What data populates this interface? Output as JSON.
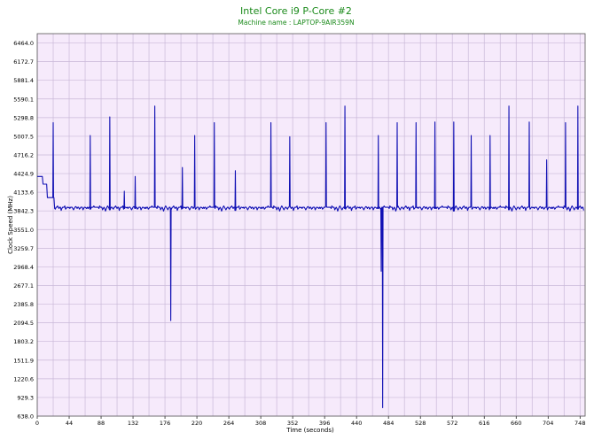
{
  "chart_data": {
    "type": "line",
    "title": "Intel Core i9 P-Core #2",
    "subtitle": "Machine name : LAPTOP-9AIR359N",
    "xlabel": "Time (seconds)",
    "ylabel": "Clock Speed (MHz)",
    "xlim": [
      0,
      755
    ],
    "ylim": [
      638.0,
      6610
    ],
    "x_ticks": [
      0,
      44,
      88,
      132,
      176,
      220,
      264,
      308,
      352,
      396,
      440,
      484,
      528,
      572,
      616,
      660,
      704,
      748
    ],
    "y_ticks": [
      "638.0",
      "929.3",
      "1220.6",
      "1511.9",
      "1803.2",
      "2094.5",
      "2385.8",
      "2677.1",
      "2968.4",
      "3259.7",
      "3551.0",
      "3842.3",
      "4133.6",
      "4424.9",
      "4716.2",
      "5007.5",
      "5298.8",
      "5590.1",
      "5881.4",
      "6172.7",
      "6464.0"
    ],
    "grid": true,
    "colors": {
      "line": "#1010b4",
      "plot_background": "#f6eafb",
      "grid": "#c9b8d8",
      "title": "#1b8a1b"
    },
    "base_samples": [
      3900,
      3900,
      3900,
      3900,
      3900,
      3880,
      3920,
      3900,
      3900,
      3900,
      3860,
      3880,
      3900,
      3880,
      3840,
      3870,
      3900,
      3920,
      3900,
      3880,
      3860,
      3880,
      3900,
      3900,
      3880,
      3870,
      3900,
      3900,
      3920,
      3900,
      3880,
      3900,
      3900,
      3850,
      3880,
      3900,
      3900,
      3900,
      3920,
      3870,
      3880,
      3900,
      3900,
      3890,
      3900,
      3880,
      3900,
      3900,
      3900,
      3880,
      3860,
      3880,
      3900,
      3910,
      3900,
      3880,
      3900,
      3900,
      3870,
      3880,
      3900,
      3900,
      3900,
      3860,
      3880,
      3900,
      3900,
      3890,
      3880,
      3900,
      3880,
      3900,
      3900,
      3870,
      3880,
      3900,
      3900,
      3900,
      3920,
      3900
    ],
    "spikes": [
      {
        "x": 22,
        "y": 5220
      },
      {
        "x": 73,
        "y": 5020
      },
      {
        "x": 100,
        "y": 5310
      },
      {
        "x": 120,
        "y": 4150
      },
      {
        "x": 135,
        "y": 4380
      },
      {
        "x": 162,
        "y": 5480
      },
      {
        "x": 184,
        "y": 2130
      },
      {
        "x": 200,
        "y": 4520
      },
      {
        "x": 217,
        "y": 5020
      },
      {
        "x": 244,
        "y": 5220
      },
      {
        "x": 273,
        "y": 4470
      },
      {
        "x": 322,
        "y": 5220
      },
      {
        "x": 348,
        "y": 5000
      },
      {
        "x": 398,
        "y": 5220
      },
      {
        "x": 424,
        "y": 5480
      },
      {
        "x": 470,
        "y": 5020
      },
      {
        "x": 474,
        "y": 2900
      },
      {
        "x": 476,
        "y": 770
      },
      {
        "x": 496,
        "y": 5220
      },
      {
        "x": 522,
        "y": 5220
      },
      {
        "x": 548,
        "y": 5230
      },
      {
        "x": 574,
        "y": 5230
      },
      {
        "x": 598,
        "y": 5020
      },
      {
        "x": 624,
        "y": 5020
      },
      {
        "x": 650,
        "y": 5480
      },
      {
        "x": 678,
        "y": 5230
      },
      {
        "x": 702,
        "y": 4640
      },
      {
        "x": 728,
        "y": 5220
      },
      {
        "x": 745,
        "y": 5480
      }
    ]
  }
}
